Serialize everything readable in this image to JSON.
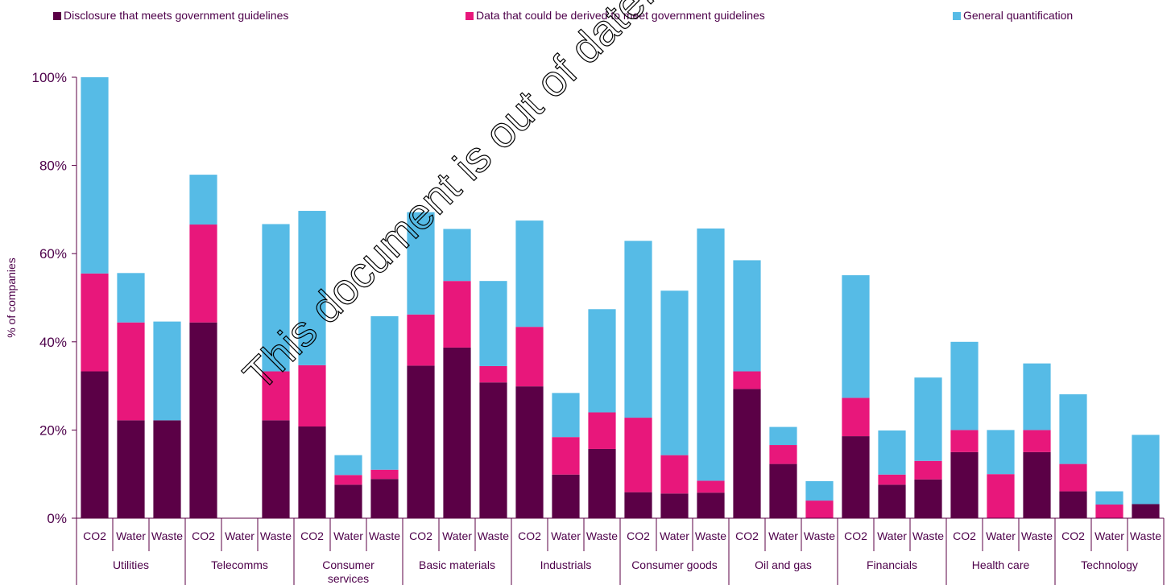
{
  "colors": {
    "series": [
      "#5b0046",
      "#e8177b",
      "#56bbe6"
    ],
    "text": "#4d004a",
    "axis": "#5b0046"
  },
  "watermark": "This document is out of date. Withd",
  "chart_data": {
    "type": "bar",
    "stacked": true,
    "ylabel": "% of companies",
    "ylim": [
      0,
      100
    ],
    "yticks": [
      "0%",
      "20%",
      "40%",
      "60%",
      "80%",
      "100%"
    ],
    "legend_position": "top",
    "sub_categories": [
      "CO2",
      "Water",
      "Waste"
    ],
    "groups": [
      "Utilities",
      "Telecomms",
      "Consumer services",
      "Basic materials",
      "Industrials",
      "Consumer goods",
      "Oil and gas",
      "Financials",
      "Health care",
      "Technology"
    ],
    "series": [
      {
        "name": "Disclosure that meets government guidelines",
        "values": [
          33.3,
          22.2,
          22.2,
          44.4,
          0,
          22.2,
          20.8,
          7.6,
          8.9,
          34.6,
          38.7,
          30.8,
          29.9,
          9.9,
          15.7,
          5.9,
          5.6,
          5.8,
          29.3,
          12.3,
          0,
          18.6,
          7.6,
          8.8,
          15,
          0,
          15,
          6.1,
          0,
          3.2
        ]
      },
      {
        "name": "Data that could be derived to meet government guidelines",
        "values": [
          22.2,
          22.2,
          0,
          22.2,
          0,
          11.1,
          13.9,
          2.2,
          2.1,
          11.6,
          15.1,
          3.7,
          13.5,
          8.5,
          8.3,
          16.9,
          8.7,
          2.7,
          4,
          4.3,
          4,
          8.7,
          2.3,
          4.2,
          5,
          10,
          5,
          6.2,
          3.1,
          0
        ]
      },
      {
        "name": "General quantification",
        "values": [
          44.5,
          11.2,
          22.4,
          11.3,
          0,
          33.4,
          35,
          4.5,
          34.8,
          23.2,
          11.8,
          19.3,
          24.1,
          10,
          23.4,
          40.1,
          37.3,
          57.2,
          25.2,
          4.1,
          4.4,
          27.8,
          10,
          18.9,
          20,
          10,
          15.1,
          15.8,
          3,
          15.7
        ]
      }
    ]
  }
}
